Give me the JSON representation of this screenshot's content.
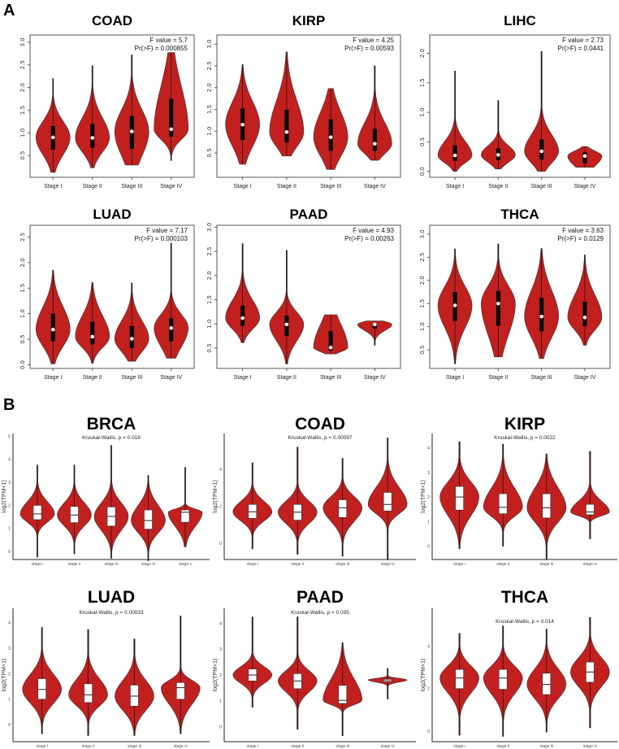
{
  "figure_labels": {
    "a": "A",
    "b": "B"
  },
  "colors": {
    "violin_fill": "#c1201f",
    "violin_stroke": "#333333",
    "box_a": "#000000",
    "box_b": "#ffffff"
  },
  "chart_data": [
    {
      "type": "violin",
      "panel": "A",
      "title": "COAD",
      "stat_lines": [
        "F value = 5.7",
        "Pr(>F) = 0.000855"
      ],
      "ylim": [
        0.02,
        3.16
      ],
      "yticks": [
        0.5,
        1.0,
        1.5,
        2.0,
        2.5,
        3.0
      ],
      "ytick_labels": [
        "0.5",
        "1.0",
        "1.5",
        "2.0",
        "2.5",
        "3.0"
      ],
      "ylabel": "",
      "categories": [
        "Stage I",
        "Stage II",
        "Stage III",
        "Stage IV"
      ],
      "groups": [
        {
          "min": 0.13,
          "q1": 0.63,
          "median": 0.9,
          "q3": 1.15,
          "max": 2.2
        },
        {
          "min": 0.23,
          "q1": 0.67,
          "median": 0.89,
          "q3": 1.2,
          "max": 2.48
        },
        {
          "min": 0.29,
          "q1": 0.65,
          "median": 1.03,
          "q3": 1.37,
          "max": 2.72
        },
        {
          "min": 0.39,
          "q1": 0.92,
          "median": 1.08,
          "q3": 1.75,
          "max": 2.77
        }
      ]
    },
    {
      "type": "violin",
      "panel": "A",
      "title": "KIRP",
      "stat_lines": [
        "F value = 4.25",
        "Pr(>F) = 0.00593"
      ],
      "ylim": [
        -0.06,
        3.21
      ],
      "yticks": [
        0.5,
        1.0,
        1.5,
        2.0,
        2.5,
        3.0
      ],
      "ytick_labels": [
        "0.5",
        "1.0",
        "1.5",
        "2.0",
        "2.5",
        "3.0"
      ],
      "ylabel": "",
      "categories": [
        "Stage I",
        "Stage II",
        "Stage III",
        "Stage IV"
      ],
      "groups": [
        {
          "min": 0.24,
          "q1": 0.8,
          "median": 1.15,
          "q3": 1.52,
          "max": 2.53
        },
        {
          "min": 0.43,
          "q1": 0.74,
          "median": 0.98,
          "q3": 1.49,
          "max": 2.82
        },
        {
          "min": 0.12,
          "q1": 0.55,
          "median": 0.86,
          "q3": 1.27,
          "max": 1.98
        },
        {
          "min": 0.33,
          "q1": 0.55,
          "median": 0.71,
          "q3": 1.05,
          "max": 2.5
        }
      ]
    },
    {
      "type": "violin",
      "panel": "A",
      "title": "LIHC",
      "stat_lines": [
        "F value = 2.73",
        "Pr(>F) = 0.0441"
      ],
      "ylim": [
        -0.1,
        2.31
      ],
      "yticks": [
        0.0,
        0.5,
        1.0,
        1.5,
        2.0
      ],
      "ytick_labels": [
        "0.0",
        "0.5",
        "1.0",
        "1.5",
        "2.0"
      ],
      "ylabel": "",
      "categories": [
        "Stage I",
        "Stage II",
        "Stage III",
        "Stage IV"
      ],
      "groups": [
        {
          "min": 0.0,
          "q1": 0.18,
          "median": 0.27,
          "q3": 0.44,
          "max": 1.7
        },
        {
          "min": 0.04,
          "q1": 0.19,
          "median": 0.28,
          "q3": 0.39,
          "max": 1.2
        },
        {
          "min": 0.0,
          "q1": 0.2,
          "median": 0.34,
          "q3": 0.54,
          "max": 2.03
        },
        {
          "min": 0.07,
          "q1": 0.14,
          "median": 0.26,
          "q3": 0.32,
          "max": 0.42
        }
      ]
    },
    {
      "type": "violin",
      "panel": "A",
      "title": "LUAD",
      "stat_lines": [
        "F value = 7.17",
        "Pr(>F) = 0.000103"
      ],
      "ylim": [
        -0.07,
        2.73
      ],
      "yticks": [
        0.0,
        0.5,
        1.0,
        1.5,
        2.0,
        2.5
      ],
      "ytick_labels": [
        "0.0",
        "0.5",
        "1.0",
        "1.5",
        "2.0",
        "2.5"
      ],
      "ylabel": "",
      "categories": [
        "Stage I",
        "Stage II",
        "Stage III",
        "Stage IV"
      ],
      "groups": [
        {
          "min": 0.02,
          "q1": 0.46,
          "median": 0.69,
          "q3": 1.0,
          "max": 1.85
        },
        {
          "min": 0.03,
          "q1": 0.4,
          "median": 0.55,
          "q3": 0.84,
          "max": 1.61
        },
        {
          "min": 0.07,
          "q1": 0.33,
          "median": 0.51,
          "q3": 0.76,
          "max": 1.6
        },
        {
          "min": 0.13,
          "q1": 0.46,
          "median": 0.72,
          "q3": 0.91,
          "max": 2.38
        }
      ]
    },
    {
      "type": "violin",
      "panel": "A",
      "title": "PAAD",
      "stat_lines": [
        "F value = 4.93",
        "Pr(>F) = 0.00263"
      ],
      "ylim": [
        0.08,
        3.04
      ],
      "yticks": [
        0.5,
        1.0,
        1.5,
        2.0,
        2.5,
        3.0
      ],
      "ytick_labels": [
        "0.5",
        "1.0",
        "1.5",
        "2.0",
        "2.5",
        "3.0"
      ],
      "ylabel": "",
      "categories": [
        "Stage I",
        "Stage II",
        "Stage III",
        "Stage IV"
      ],
      "groups": [
        {
          "min": 0.61,
          "q1": 0.96,
          "median": 1.12,
          "q3": 1.38,
          "max": 2.66
        },
        {
          "min": 0.17,
          "q1": 0.75,
          "median": 0.99,
          "q3": 1.17,
          "max": 2.52
        },
        {
          "min": 0.38,
          "q1": 0.45,
          "median": 0.51,
          "q3": 0.85,
          "max": 1.19
        },
        {
          "min": 0.56,
          "q1": 0.9,
          "median": 0.99,
          "q3": 1.02,
          "max": 1.06
        }
      ]
    },
    {
      "type": "violin",
      "panel": "A",
      "title": "THCA",
      "stat_lines": [
        "F value = 3.63",
        "Pr(>F) = 0.0129"
      ],
      "ylim": [
        0.1,
        3.19
      ],
      "yticks": [
        0.5,
        1.0,
        1.5,
        2.0,
        2.5,
        3.0
      ],
      "ytick_labels": [
        "0.5",
        "1.0",
        "1.5",
        "2.0",
        "2.5",
        "3.0"
      ],
      "ylabel": "",
      "categories": [
        "Stage I",
        "Stage II",
        "Stage III",
        "Stage IV"
      ],
      "groups": [
        {
          "min": 0.2,
          "q1": 1.12,
          "median": 1.46,
          "q3": 1.75,
          "max": 2.68
        },
        {
          "min": 0.35,
          "q1": 1.02,
          "median": 1.5,
          "q3": 1.77,
          "max": 2.79
        },
        {
          "min": 0.31,
          "q1": 0.9,
          "median": 1.22,
          "q3": 1.62,
          "max": 2.69
        },
        {
          "min": 0.6,
          "q1": 1.01,
          "median": 1.2,
          "q3": 1.54,
          "max": 2.55
        }
      ]
    },
    {
      "type": "violin",
      "panel": "B",
      "title": "BRCA",
      "stat_lines": [
        "Kruskal-Wallis, p = 0.018"
      ],
      "ylim": [
        -0.35,
        5.12
      ],
      "yticks": [
        0,
        1,
        2,
        3,
        4,
        5
      ],
      "ytick_labels": [
        "0",
        "1",
        "2",
        "3",
        "4",
        "5"
      ],
      "ylabel": "log2(TPM+1)",
      "categories": [
        "stage i",
        "stage ii",
        "stage iii",
        "stage iv",
        "stage x"
      ],
      "groups": [
        {
          "min": -0.25,
          "q1": 1.38,
          "median": 1.63,
          "q3": 2.0,
          "max": 3.75
        },
        {
          "min": -0.1,
          "q1": 1.25,
          "median": 1.58,
          "q3": 1.95,
          "max": 3.75
        },
        {
          "min": -0.3,
          "q1": 1.1,
          "median": 1.52,
          "q3": 1.93,
          "max": 4.6
        },
        {
          "min": -0.4,
          "q1": 0.97,
          "median": 1.34,
          "q3": 1.8,
          "max": 3.3
        },
        {
          "min": 0.2,
          "q1": 1.27,
          "median": 1.7,
          "q3": 1.8,
          "max": 3.65
        }
      ]
    },
    {
      "type": "violin",
      "panel": "B",
      "title": "COAD",
      "stat_lines": [
        "Kruskal-Wallis, p = 0.00097"
      ],
      "ylim": [
        -0.88,
        5.94
      ],
      "yticks": [
        0,
        2,
        4
      ],
      "ytick_labels": [
        "0",
        "2",
        "4"
      ],
      "ylabel": "log2(TPM+1)",
      "categories": [
        "stage i",
        "stage ii",
        "stage iii",
        "stage iv"
      ],
      "groups": [
        {
          "min": -0.3,
          "q1": 1.35,
          "median": 1.7,
          "q3": 2.1,
          "max": 4.35
        },
        {
          "min": -0.6,
          "q1": 1.25,
          "median": 1.68,
          "q3": 2.1,
          "max": 5.2
        },
        {
          "min": -0.7,
          "q1": 1.4,
          "median": 1.92,
          "q3": 2.35,
          "max": 4.6
        },
        {
          "min": -0.9,
          "q1": 1.75,
          "median": 2.1,
          "q3": 2.75,
          "max": 5.7
        }
      ]
    },
    {
      "type": "violin",
      "panel": "B",
      "title": "KIRP",
      "stat_lines": [
        "Kruskal-Wallis, p = 0.0022"
      ],
      "ylim": [
        -0.54,
        4.58
      ],
      "yticks": [
        0,
        1,
        2,
        3,
        4
      ],
      "ytick_labels": [
        "0",
        "1",
        "2",
        "3",
        "4"
      ],
      "ylabel": "log2(TPM+1)",
      "categories": [
        "stage i",
        "stage ii",
        "stage iii",
        "stage iv"
      ],
      "groups": [
        {
          "min": -0.1,
          "q1": 1.47,
          "median": 2.0,
          "q3": 2.43,
          "max": 4.25
        },
        {
          "min": 0.0,
          "q1": 1.32,
          "median": 1.58,
          "q3": 2.13,
          "max": 4.15
        },
        {
          "min": -0.55,
          "q1": 1.15,
          "median": 1.56,
          "q3": 2.13,
          "max": 3.75
        },
        {
          "min": 0.3,
          "q1": 1.28,
          "median": 1.39,
          "q3": 1.7,
          "max": 3.85
        }
      ]
    },
    {
      "type": "violin",
      "panel": "B",
      "title": "LUAD",
      "stat_lines": [
        "Kruskal-Wallis, p = 0.00033"
      ],
      "ylim": [
        -0.66,
        4.55
      ],
      "yticks": [
        0,
        1,
        2,
        3,
        4
      ],
      "ytick_labels": [
        "0",
        "1",
        "2",
        "3",
        "4"
      ],
      "ylabel": "log2(TPM+1)",
      "categories": [
        "stage i",
        "stage ii",
        "stage iii",
        "stage iv"
      ],
      "groups": [
        {
          "min": -0.35,
          "q1": 1.0,
          "median": 1.38,
          "q3": 1.8,
          "max": 3.8
        },
        {
          "min": -0.42,
          "q1": 0.87,
          "median": 1.17,
          "q3": 1.6,
          "max": 3.72
        },
        {
          "min": -0.42,
          "q1": 0.73,
          "median": 1.12,
          "q3": 1.55,
          "max": 3.35
        },
        {
          "min": -0.35,
          "q1": 1.0,
          "median": 1.45,
          "q3": 1.65,
          "max": 4.25
        }
      ]
    },
    {
      "type": "violin",
      "panel": "B",
      "title": "PAAD",
      "stat_lines": [
        "Kruskal-Wallis, p = 0.035"
      ],
      "ylim": [
        -0.58,
        4.58
      ],
      "yticks": [
        0,
        1,
        2,
        3,
        4
      ],
      "ytick_labels": [
        "0",
        "1",
        "2",
        "3",
        "4"
      ],
      "ylabel": "log2(TPM+1)",
      "categories": [
        "stage i",
        "stage ii",
        "stage iii",
        "stage iv"
      ],
      "groups": [
        {
          "min": 0.75,
          "q1": 1.77,
          "median": 2.0,
          "q3": 2.23,
          "max": 4.25
        },
        {
          "min": -0.1,
          "q1": 1.47,
          "median": 1.77,
          "q3": 2.05,
          "max": 4.25
        },
        {
          "min": -0.35,
          "q1": 0.9,
          "median": 1.02,
          "q3": 1.6,
          "max": 3.25
        },
        {
          "min": 1.07,
          "q1": 1.75,
          "median": 1.81,
          "q3": 1.85,
          "max": 2.25
        }
      ]
    },
    {
      "type": "violin",
      "panel": "B",
      "title": "THCA",
      "stat_lines": [
        "Kruskal-Wallis, p = 0.014"
      ],
      "ylim": [
        -0.5,
        5.78
      ],
      "yticks": [
        0,
        2,
        4
      ],
      "ytick_labels": [
        "0",
        "2",
        "4"
      ],
      "ylabel": "log2(TPM+1)",
      "categories": [
        "stage i",
        "stage ii",
        "stage iii",
        "stage iv"
      ],
      "groups": [
        {
          "min": -0.2,
          "q1": 2.0,
          "median": 2.5,
          "q3": 2.9,
          "max": 4.6
        },
        {
          "min": -0.25,
          "q1": 1.97,
          "median": 2.5,
          "q3": 2.9,
          "max": 4.95
        },
        {
          "min": -0.05,
          "q1": 1.72,
          "median": 2.2,
          "q3": 2.72,
          "max": 4.8
        },
        {
          "min": 0.15,
          "q1": 2.3,
          "median": 2.78,
          "q3": 3.25,
          "max": 5.35
        }
      ]
    }
  ]
}
